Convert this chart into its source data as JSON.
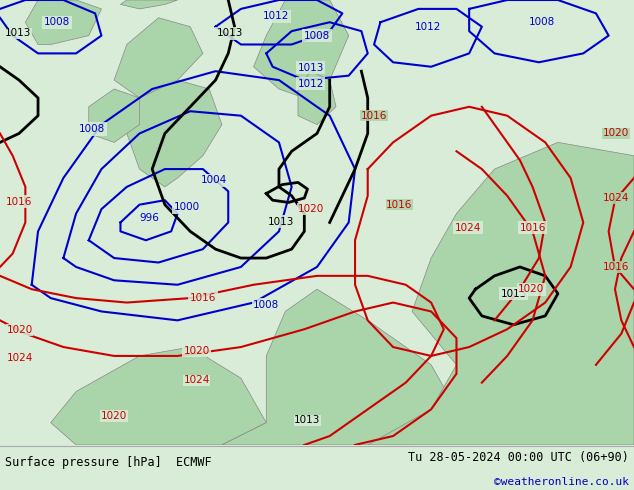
{
  "bottom_left_text": "Surface pressure [hPa]  ECMWF",
  "bottom_right_text": "Tu 28-05-2024 00:00 UTC (06+90)",
  "bottom_credit": "©weatheronline.co.uk",
  "bg_land_color": "#aad4aa",
  "bg_sea_color": "#d8ecd8",
  "bar_bg_color": "#f0f0f0",
  "bottom_text_color": "#000000",
  "credit_color": "#0000bb",
  "figsize": [
    6.34,
    4.9
  ],
  "dpi": 100,
  "blue": "#0000cc",
  "black": "#000000",
  "red": "#cc0000"
}
